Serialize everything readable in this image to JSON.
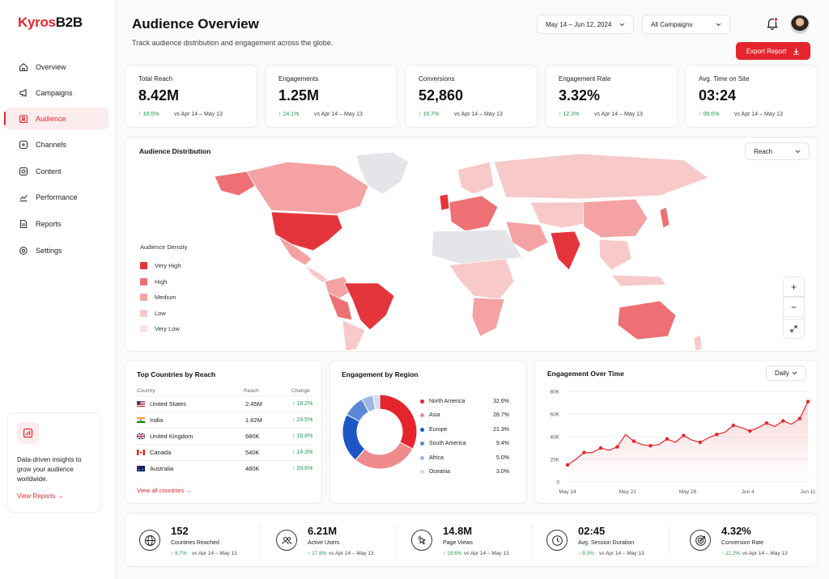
{
  "brand": {
    "name_a": "Kyros",
    "name_b": "B2B"
  },
  "nav": [
    {
      "label": "Overview",
      "icon": "home-icon"
    },
    {
      "label": "Campaigns",
      "icon": "megaphone-icon"
    },
    {
      "label": "Audience",
      "icon": "users-icon",
      "active": true
    },
    {
      "label": "Channels",
      "icon": "layers-icon"
    },
    {
      "label": "Content",
      "icon": "camera-icon"
    },
    {
      "label": "Performance",
      "icon": "chart-line-icon"
    },
    {
      "label": "Reports",
      "icon": "file-icon"
    },
    {
      "label": "Settings",
      "icon": "gear-icon"
    }
  ],
  "promo": {
    "text": "Data-driven insights to grow your audience worldwide.",
    "link": "View Reports"
  },
  "header": {
    "title": "Audience Overview",
    "subtitle": "Track audience distribution and engagement across the globe.",
    "date_range": "May 14 – Jun 12, 2024",
    "campaign_filter": "All Campaigns",
    "export_label": "Export Report"
  },
  "kpis": [
    {
      "label": "Total Reach",
      "value": "8.42M",
      "change": "18.6%",
      "compare": "vs Apr 14 – May 13"
    },
    {
      "label": "Engagements",
      "value": "1.25M",
      "change": "24.1%",
      "compare": "vs Apr 14 – May 13"
    },
    {
      "label": "Conversions",
      "value": "52,860",
      "change": "16.7%",
      "compare": "vs Apr 14 – May 13"
    },
    {
      "label": "Engagement Rate",
      "value": "3.32%",
      "change": "12.3%",
      "compare": "vs Apr 14 – May 13"
    },
    {
      "label": "Avg. Time on Site",
      "value": "03:24",
      "change": "08.6%",
      "compare": "vs Apr 14 – May 13"
    }
  ],
  "map": {
    "title": "Audience Distribution",
    "metric": "Reach",
    "legend_title": "Audience Density",
    "legend": [
      {
        "label": "Very High",
        "color": "#e5353c"
      },
      {
        "label": "High",
        "color": "#ee7074"
      },
      {
        "label": "Medium",
        "color": "#f4a2a3"
      },
      {
        "label": "Low",
        "color": "#f8c9c9"
      },
      {
        "label": "Very Low",
        "color": "#fbe3e3"
      }
    ]
  },
  "top_countries": {
    "title": "Top Countries by Reach",
    "col_country": "Country",
    "col_reach": "Reach",
    "col_change": "Change",
    "rows": [
      {
        "country": "United States",
        "reach": "2.45M",
        "change": "18.2%"
      },
      {
        "country": "India",
        "reach": "1.62M",
        "change": "24.5%"
      },
      {
        "country": "United Kingdom",
        "reach": "680K",
        "change": "16.8%"
      },
      {
        "country": "Canada",
        "reach": "540K",
        "change": "14.3%"
      },
      {
        "country": "Australia",
        "reach": "480K",
        "change": "20.6%"
      }
    ],
    "link": "View all countries"
  },
  "regions": {
    "title": "Engagement by Region",
    "items": [
      {
        "name": "North America",
        "pct": "32.6%",
        "color": "#e5252d"
      },
      {
        "name": "Asia",
        "pct": "28.7%",
        "color": "#ef8a8c"
      },
      {
        "name": "Europe",
        "pct": "21.3%",
        "color": "#1e56c4"
      },
      {
        "name": "South America",
        "pct": "9.4%",
        "color": "#5b87d6"
      },
      {
        "name": "Africa",
        "pct": "5.0%",
        "color": "#9fb7e6"
      },
      {
        "name": "Oceania",
        "pct": "3.0%",
        "color": "#cfdcf3"
      }
    ]
  },
  "over_time": {
    "title": "Engagement Over Time",
    "granularity": "Daily"
  },
  "chart_data": {
    "type": "line",
    "title": "Engagement Over Time",
    "x_ticks": [
      "May 14",
      "May 21",
      "May 28",
      "Jun 4",
      "Jun 11"
    ],
    "y_ticks": [
      "0",
      "20K",
      "40K",
      "60K",
      "80K"
    ],
    "ylim": [
      0,
      80000
    ],
    "x": [
      "May 14",
      "May 15",
      "May 16",
      "May 17",
      "May 18",
      "May 19",
      "May 20",
      "May 21",
      "May 22",
      "May 23",
      "May 24",
      "May 25",
      "May 26",
      "May 27",
      "May 28",
      "May 29",
      "May 30",
      "May 31",
      "Jun 1",
      "Jun 2",
      "Jun 3",
      "Jun 4",
      "Jun 5",
      "Jun 6",
      "Jun 7",
      "Jun 8",
      "Jun 9",
      "Jun 10",
      "Jun 11",
      "Jun 12"
    ],
    "values": [
      15000,
      20000,
      26000,
      26000,
      30000,
      28000,
      31000,
      42000,
      36000,
      33000,
      32000,
      33000,
      38000,
      35000,
      41000,
      37000,
      35000,
      39000,
      42000,
      44000,
      50000,
      48000,
      45000,
      48000,
      52000,
      49000,
      54000,
      51000,
      56000,
      71000
    ]
  },
  "bottom_stats": [
    {
      "value": "152",
      "label": "Countries Reached",
      "change": "8.7%",
      "compare": "vs Apr 14 – May 13",
      "icon": "globe-icon"
    },
    {
      "value": "6.21M",
      "label": "Active Users",
      "change": "17.8%",
      "compare": "vs Apr 14 – May 13",
      "icon": "users-icon"
    },
    {
      "value": "14.8M",
      "label": "Page Views",
      "change": "19.6%",
      "compare": "vs Apr 14 – May 13",
      "icon": "cursor-icon"
    },
    {
      "value": "02:45",
      "label": "Avg. Session Duration",
      "change": "9.3%",
      "compare": "vs Apr 14 – May 13",
      "icon": "clock-icon"
    },
    {
      "value": "4.32%",
      "label": "Conversion Rate",
      "change": "11.2%",
      "compare": "vs Apr 14 – May 13",
      "icon": "target-icon"
    }
  ]
}
